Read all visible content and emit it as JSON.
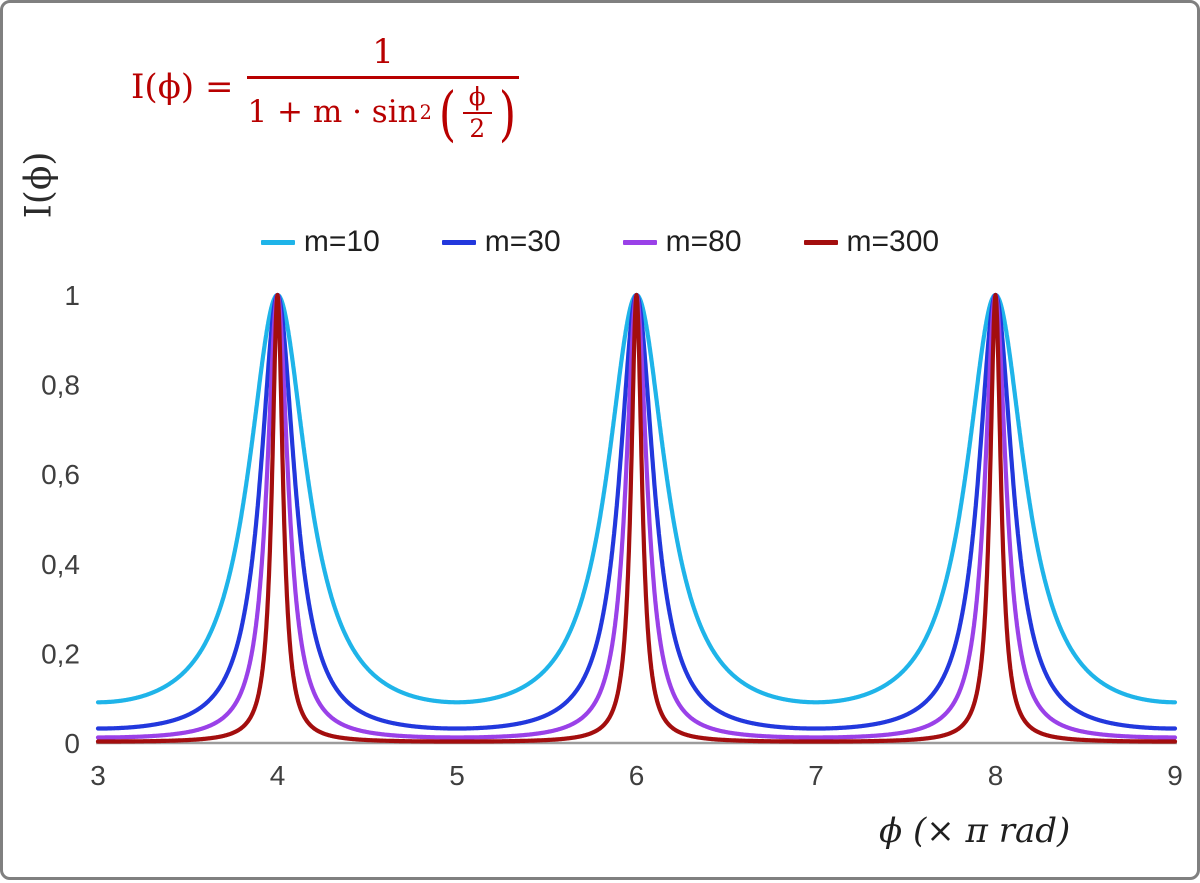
{
  "colors": {
    "formula": "#b80000",
    "axis": "#9c9c9c",
    "tick_text": "#3f3f3f",
    "border": "#808080",
    "background": "#ffffff"
  },
  "formula": {
    "lhs": "I(ϕ) =",
    "numerator": "1",
    "denominator_prefix": "1 + m · sin",
    "denominator_sup": "2",
    "inner_numerator": "ϕ",
    "inner_denominator": "2",
    "open_paren": "(",
    "close_paren": ")"
  },
  "axes": {
    "ylabel": "I(ϕ)",
    "xlabel": "ϕ  (× π rad)"
  },
  "chart_data": {
    "type": "line",
    "title": "",
    "function": "I(phi) = 1 / (1 + m * sin^2(phi/2))",
    "x_axis": {
      "label": "ϕ (× π rad)",
      "unit": "π rad",
      "min": 3,
      "max": 9,
      "tick_values": [
        3,
        4,
        5,
        6,
        7,
        8,
        9
      ],
      "tick_labels": [
        "3",
        "4",
        "5",
        "6",
        "7",
        "8",
        "9"
      ]
    },
    "y_axis": {
      "label": "I(ϕ)",
      "min": 0,
      "max": 1,
      "tick_values": [
        0,
        0.2,
        0.4,
        0.6,
        0.8,
        1
      ],
      "tick_labels": [
        "0",
        "0,2",
        "0,4",
        "0,6",
        "0,8",
        "1"
      ]
    },
    "series": [
      {
        "name": "m=10",
        "m": 10,
        "color": "#1fb4e9"
      },
      {
        "name": "m=30",
        "m": 30,
        "color": "#2238dd"
      },
      {
        "name": "m=80",
        "m": 80,
        "color": "#9a41e8"
      },
      {
        "name": "m=300",
        "m": 300,
        "color": "#a30e0e"
      }
    ],
    "peaks_x": [
      4,
      6,
      8
    ],
    "peak_value": 1,
    "legend_position": "top-center",
    "grid": false
  }
}
